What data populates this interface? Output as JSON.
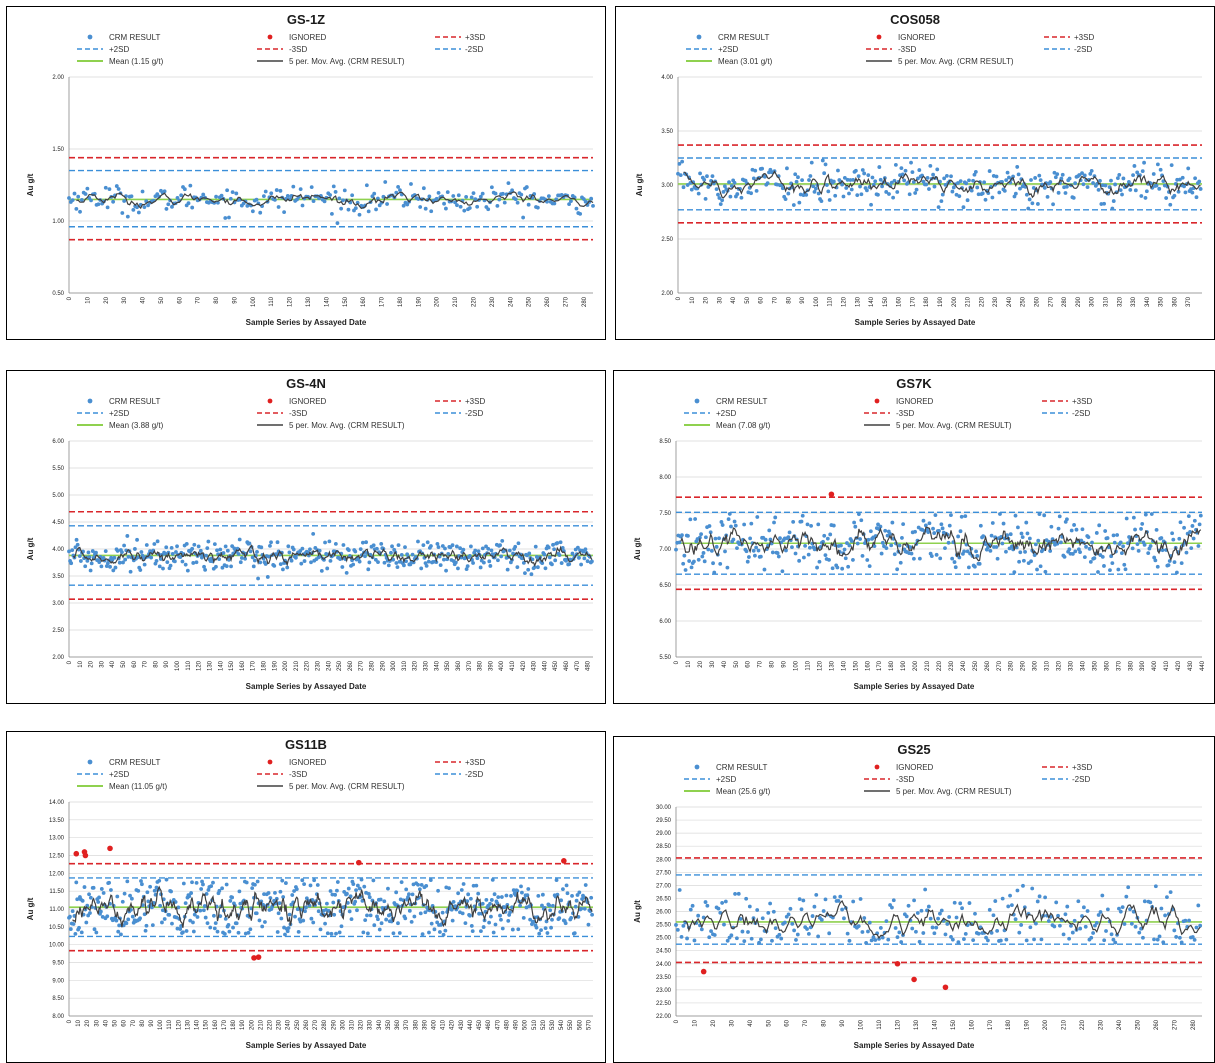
{
  "legend": {
    "crm": "CRM RESULT",
    "ignored": "IGNORED",
    "p3sd": "+3SD",
    "p2sd": "+2SD",
    "m3sd": "-3SD",
    "m2sd": "-2SD",
    "movavg": "5 per. Mov. Avg. (CRM RESULT)"
  },
  "colors": {
    "crm": "#4a8fd1",
    "ignored": "#e02020",
    "sd3": "#d9262b",
    "sd2": "#3b8fd9",
    "mean": "#8fd14f",
    "movavg": "#404040",
    "grid": "#d9d9d9"
  },
  "chart_data": [
    {
      "type": "scatter",
      "title": "GS-1Z",
      "xlabel": "Sample Series by Assayed Date",
      "ylabel": "Au g/t",
      "mean_label": "Mean (1.15 g/t)",
      "ylim": [
        0.5,
        2.0
      ],
      "yticks": [
        "0.50",
        "1.00",
        "1.50",
        "2.00"
      ],
      "xlim": [
        0,
        285
      ],
      "xticks": [
        0,
        10,
        20,
        30,
        40,
        50,
        60,
        70,
        80,
        90,
        100,
        110,
        120,
        130,
        140,
        150,
        160,
        170,
        180,
        190,
        200,
        210,
        220,
        230,
        240,
        250,
        260,
        270,
        280
      ],
      "mean": 1.15,
      "plus3sd": 1.44,
      "plus2sd": 1.35,
      "minus2sd": 0.96,
      "minus3sd": 0.87,
      "spread": 0.045,
      "n": 286,
      "ignored": []
    },
    {
      "type": "scatter",
      "title": "COS058",
      "xlabel": "Sample Series by Assayed Date",
      "ylabel": "Au g/t",
      "mean_label": "Mean (3.01 g/t)",
      "ylim": [
        2.0,
        4.0
      ],
      "yticks": [
        "2.00",
        "2.50",
        "3.00",
        "3.50",
        "4.00"
      ],
      "xlim": [
        0,
        380
      ],
      "xticks": [
        0,
        10,
        20,
        30,
        40,
        50,
        60,
        70,
        80,
        90,
        100,
        110,
        120,
        130,
        140,
        150,
        160,
        170,
        180,
        190,
        200,
        210,
        220,
        230,
        240,
        250,
        260,
        270,
        280,
        290,
        300,
        310,
        320,
        330,
        340,
        350,
        360,
        370
      ],
      "mean": 3.01,
      "plus3sd": 3.37,
      "plus2sd": 3.25,
      "minus2sd": 2.77,
      "minus3sd": 2.65,
      "spread": 0.09,
      "n": 380,
      "ignored": []
    },
    {
      "type": "scatter",
      "title": "GS-4N",
      "xlabel": "Sample Series by Assayed Date",
      "ylabel": "Au g/t",
      "mean_label": "Mean (3.88 g/t)",
      "ylim": [
        2.0,
        6.0
      ],
      "yticks": [
        "2.00",
        "2.50",
        "3.00",
        "3.50",
        "4.00",
        "4.50",
        "5.00",
        "5.50",
        "6.00"
      ],
      "xlim": [
        0,
        485
      ],
      "xticks": [
        0,
        10,
        20,
        30,
        40,
        50,
        60,
        70,
        80,
        90,
        100,
        110,
        120,
        130,
        140,
        150,
        160,
        170,
        180,
        190,
        200,
        210,
        220,
        230,
        240,
        250,
        260,
        270,
        280,
        290,
        300,
        310,
        320,
        330,
        340,
        350,
        360,
        370,
        380,
        390,
        400,
        410,
        420,
        430,
        440,
        450,
        460,
        470,
        480
      ],
      "mean": 3.88,
      "plus3sd": 4.69,
      "plus2sd": 4.43,
      "minus2sd": 3.33,
      "minus3sd": 3.07,
      "spread": 0.14,
      "n": 485,
      "ignored": []
    },
    {
      "type": "scatter",
      "title": "GS7K",
      "xlabel": "Sample Series by Assayed Date",
      "ylabel": "Au g/t",
      "mean_label": "Mean (7.08 g/t)",
      "ylim": [
        5.5,
        8.5
      ],
      "yticks": [
        "5.50",
        "6.00",
        "6.50",
        "7.00",
        "7.50",
        "8.00",
        "8.50"
      ],
      "xlim": [
        0,
        440
      ],
      "xticks": [
        0,
        10,
        20,
        30,
        40,
        50,
        60,
        70,
        80,
        90,
        100,
        110,
        120,
        130,
        140,
        150,
        160,
        170,
        180,
        190,
        200,
        210,
        220,
        230,
        240,
        250,
        260,
        270,
        280,
        290,
        300,
        310,
        320,
        330,
        340,
        350,
        360,
        370,
        380,
        390,
        400,
        410,
        420,
        430,
        440
      ],
      "mean": 7.08,
      "plus3sd": 7.72,
      "plus2sd": 7.51,
      "minus2sd": 6.65,
      "minus3sd": 6.44,
      "spread": 0.2,
      "n": 440,
      "ignored": [
        [
          130,
          7.76
        ]
      ]
    },
    {
      "type": "scatter",
      "title": "GS11B",
      "xlabel": "Sample Series by Assayed Date",
      "ylabel": "Au g/t",
      "mean_label": "Mean (11.05 g/t)",
      "ylim": [
        8.0,
        14.0
      ],
      "yticks": [
        "8.00",
        "8.50",
        "9.00",
        "9.50",
        "10.00",
        "10.50",
        "11.00",
        "11.50",
        "12.00",
        "12.50",
        "13.00",
        "13.50",
        "14.00"
      ],
      "xlim": [
        0,
        575
      ],
      "xticks": [
        0,
        10,
        20,
        30,
        40,
        50,
        60,
        70,
        80,
        90,
        100,
        110,
        120,
        130,
        140,
        150,
        160,
        170,
        180,
        190,
        200,
        210,
        220,
        230,
        240,
        250,
        260,
        270,
        280,
        290,
        300,
        310,
        320,
        330,
        340,
        350,
        360,
        370,
        380,
        390,
        400,
        410,
        420,
        430,
        440,
        450,
        460,
        470,
        480,
        490,
        500,
        510,
        520,
        530,
        540,
        550,
        560,
        570
      ],
      "mean": 11.05,
      "plus3sd": 12.27,
      "plus2sd": 11.87,
      "minus2sd": 10.23,
      "minus3sd": 9.83,
      "spread": 0.42,
      "n": 575,
      "ignored": [
        [
          8,
          12.55
        ],
        [
          17,
          12.6
        ],
        [
          18,
          12.5
        ],
        [
          45,
          12.7
        ],
        [
          203,
          9.63
        ],
        [
          208,
          9.65
        ],
        [
          318,
          12.3
        ],
        [
          543,
          12.35
        ]
      ]
    },
    {
      "type": "scatter",
      "title": "GS25",
      "xlabel": "Sample Series by Assayed Date",
      "ylabel": "Au g/t",
      "mean_label": "Mean (25.6 g/t)",
      "ylim": [
        22.0,
        30.0
      ],
      "yticks": [
        "22.00",
        "22.50",
        "23.00",
        "23.50",
        "24.00",
        "24.50",
        "25.00",
        "25.50",
        "26.00",
        "26.50",
        "27.00",
        "27.50",
        "28.00",
        "28.50",
        "29.00",
        "29.50",
        "30.00"
      ],
      "xlim": [
        0,
        285
      ],
      "xticks": [
        0,
        10,
        20,
        30,
        40,
        50,
        60,
        70,
        80,
        90,
        100,
        110,
        120,
        130,
        140,
        150,
        160,
        170,
        180,
        190,
        200,
        210,
        220,
        230,
        240,
        250,
        260,
        270,
        280
      ],
      "mean": 25.6,
      "plus3sd": 28.05,
      "plus2sd": 27.4,
      "minus2sd": 24.75,
      "minus3sd": 24.05,
      "spread": 0.6,
      "n": 285,
      "ignored": [
        [
          15,
          23.7
        ],
        [
          120,
          24.0
        ],
        [
          129,
          23.4
        ],
        [
          146,
          23.1
        ]
      ]
    }
  ]
}
